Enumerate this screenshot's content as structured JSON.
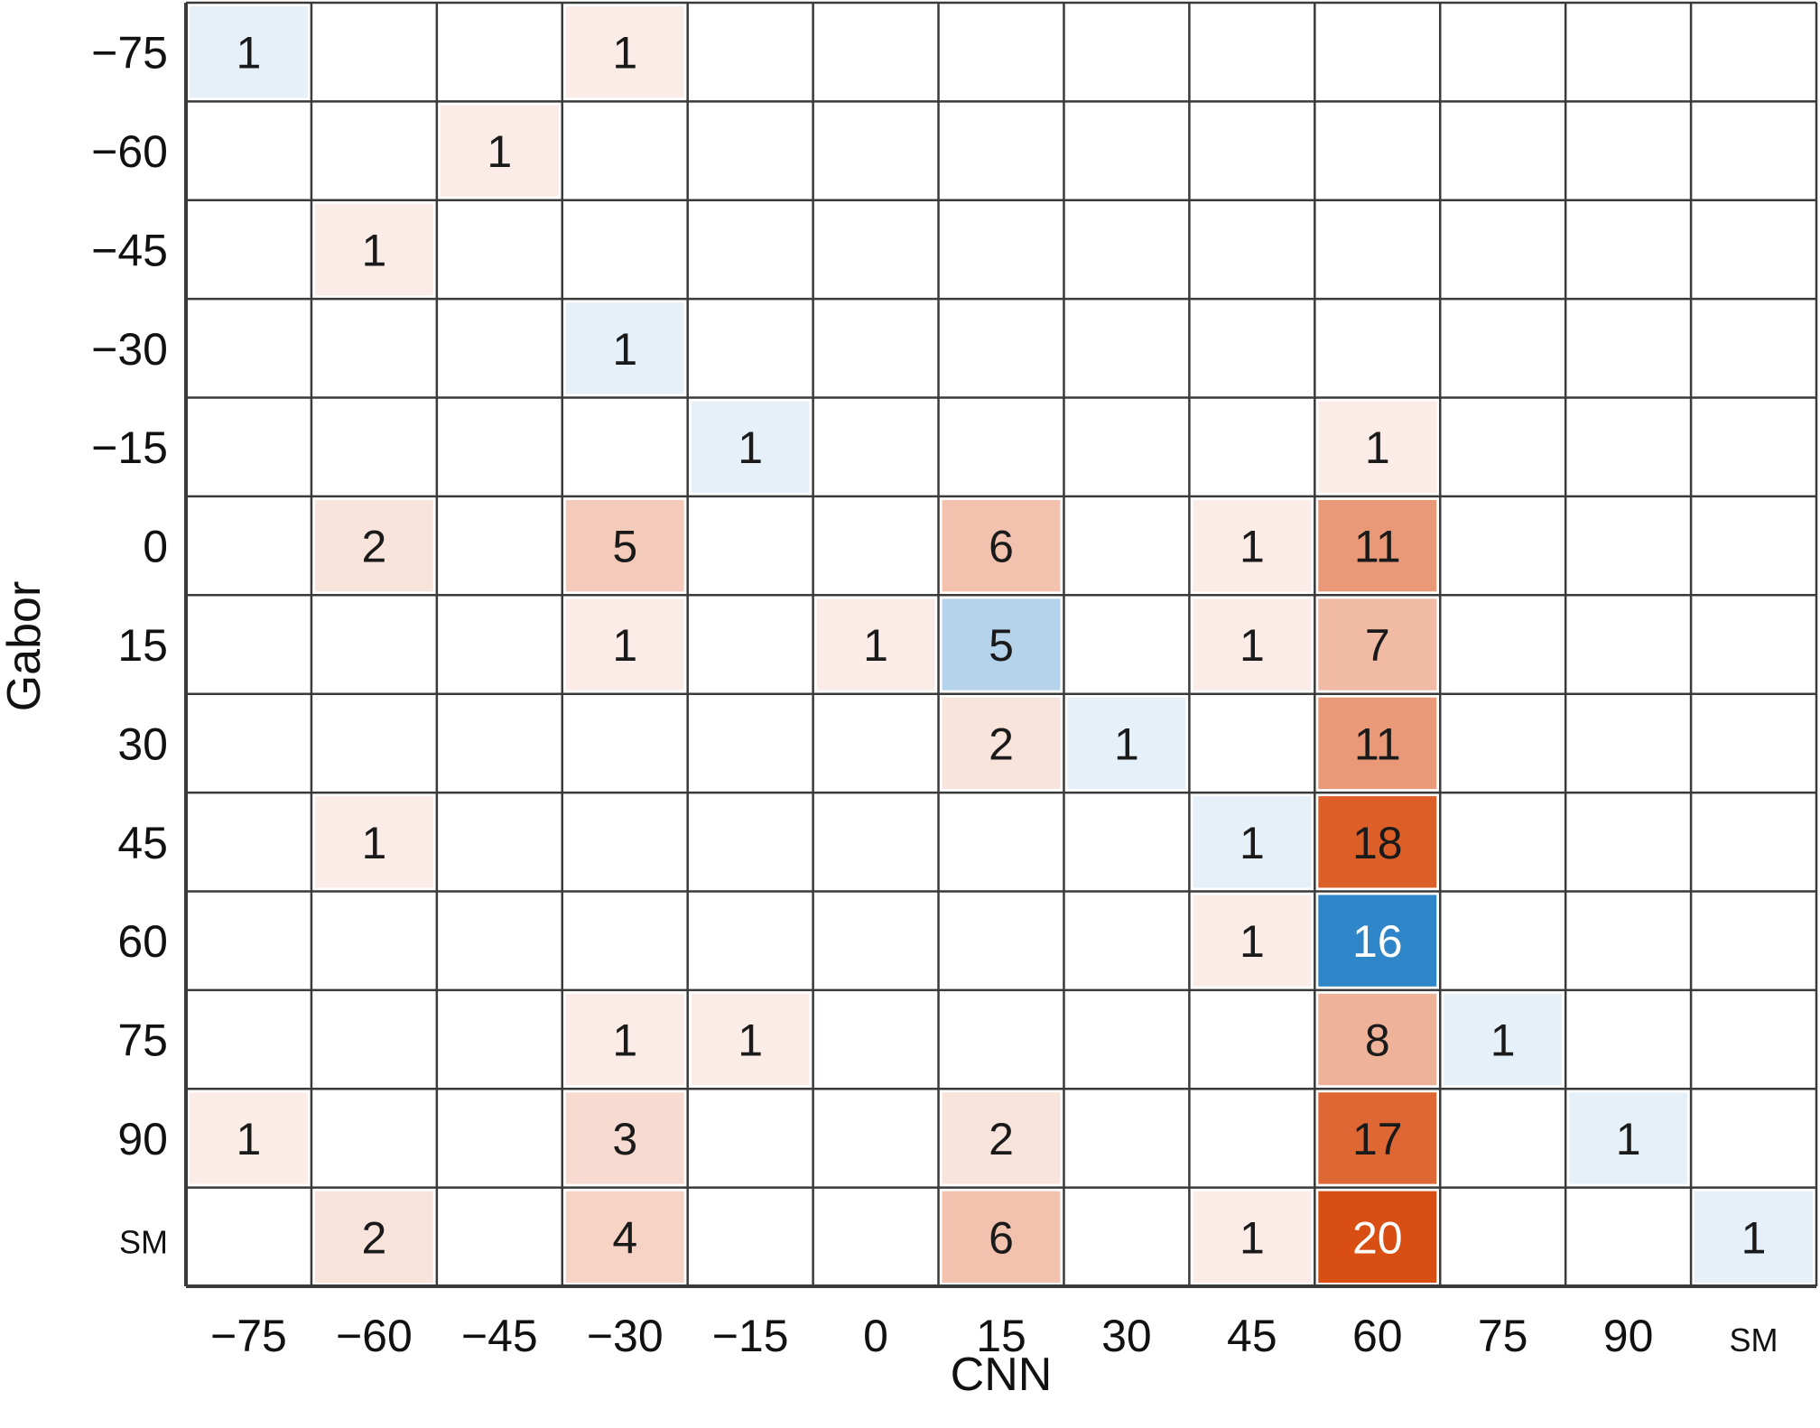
{
  "chart_data": {
    "type": "heatmap",
    "xlabel": "CNN",
    "ylabel": "Gabor",
    "x_categories": [
      "−75",
      "−60",
      "−45",
      "−30",
      "−15",
      "0",
      "15",
      "30",
      "45",
      "60",
      "75",
      "90",
      "SM"
    ],
    "y_categories": [
      "−75",
      "−60",
      "−45",
      "−30",
      "−15",
      "0",
      "15",
      "30",
      "45",
      "60",
      "75",
      "90",
      "SM"
    ],
    "cells": [
      {
        "row": 0,
        "col": 0,
        "value": 1,
        "kind": "diagonal"
      },
      {
        "row": 0,
        "col": 3,
        "value": 1,
        "kind": "off"
      },
      {
        "row": 1,
        "col": 2,
        "value": 1,
        "kind": "off"
      },
      {
        "row": 2,
        "col": 1,
        "value": 1,
        "kind": "off"
      },
      {
        "row": 3,
        "col": 3,
        "value": 1,
        "kind": "diagonal"
      },
      {
        "row": 4,
        "col": 4,
        "value": 1,
        "kind": "diagonal"
      },
      {
        "row": 4,
        "col": 9,
        "value": 1,
        "kind": "off"
      },
      {
        "row": 5,
        "col": 1,
        "value": 2,
        "kind": "off"
      },
      {
        "row": 5,
        "col": 3,
        "value": 5,
        "kind": "off"
      },
      {
        "row": 5,
        "col": 6,
        "value": 6,
        "kind": "off"
      },
      {
        "row": 5,
        "col": 8,
        "value": 1,
        "kind": "off"
      },
      {
        "row": 5,
        "col": 9,
        "value": 11,
        "kind": "off"
      },
      {
        "row": 6,
        "col": 3,
        "value": 1,
        "kind": "off"
      },
      {
        "row": 6,
        "col": 5,
        "value": 1,
        "kind": "off"
      },
      {
        "row": 6,
        "col": 6,
        "value": 5,
        "kind": "diagonal"
      },
      {
        "row": 6,
        "col": 8,
        "value": 1,
        "kind": "off"
      },
      {
        "row": 6,
        "col": 9,
        "value": 7,
        "kind": "off"
      },
      {
        "row": 7,
        "col": 6,
        "value": 2,
        "kind": "off"
      },
      {
        "row": 7,
        "col": 7,
        "value": 1,
        "kind": "diagonal"
      },
      {
        "row": 7,
        "col": 9,
        "value": 11,
        "kind": "off"
      },
      {
        "row": 8,
        "col": 1,
        "value": 1,
        "kind": "off"
      },
      {
        "row": 8,
        "col": 8,
        "value": 1,
        "kind": "diagonal"
      },
      {
        "row": 8,
        "col": 9,
        "value": 18,
        "kind": "off"
      },
      {
        "row": 9,
        "col": 8,
        "value": 1,
        "kind": "off"
      },
      {
        "row": 9,
        "col": 9,
        "value": 16,
        "kind": "diagonal"
      },
      {
        "row": 10,
        "col": 3,
        "value": 1,
        "kind": "off"
      },
      {
        "row": 10,
        "col": 4,
        "value": 1,
        "kind": "off"
      },
      {
        "row": 10,
        "col": 9,
        "value": 8,
        "kind": "off"
      },
      {
        "row": 10,
        "col": 10,
        "value": 1,
        "kind": "diagonal"
      },
      {
        "row": 11,
        "col": 0,
        "value": 1,
        "kind": "off"
      },
      {
        "row": 11,
        "col": 3,
        "value": 3,
        "kind": "off"
      },
      {
        "row": 11,
        "col": 6,
        "value": 2,
        "kind": "off"
      },
      {
        "row": 11,
        "col": 9,
        "value": 17,
        "kind": "off"
      },
      {
        "row": 11,
        "col": 11,
        "value": 1,
        "kind": "diagonal"
      },
      {
        "row": 12,
        "col": 1,
        "value": 2,
        "kind": "off"
      },
      {
        "row": 12,
        "col": 3,
        "value": 4,
        "kind": "off"
      },
      {
        "row": 12,
        "col": 6,
        "value": 6,
        "kind": "off"
      },
      {
        "row": 12,
        "col": 8,
        "value": 1,
        "kind": "off"
      },
      {
        "row": 12,
        "col": 9,
        "value": 20,
        "kind": "off"
      },
      {
        "row": 12,
        "col": 12,
        "value": 1,
        "kind": "diagonal"
      }
    ],
    "colors": {
      "diagonal_scale": [
        "#e6f0f9",
        "#2e86c8"
      ],
      "offdiagonal_scale": [
        "#fbece7",
        "#d94e12"
      ],
      "grid": "#3a3a3a",
      "text_dark": "#1a1a1a",
      "text_light": "#ffffff"
    },
    "grid": true
  }
}
